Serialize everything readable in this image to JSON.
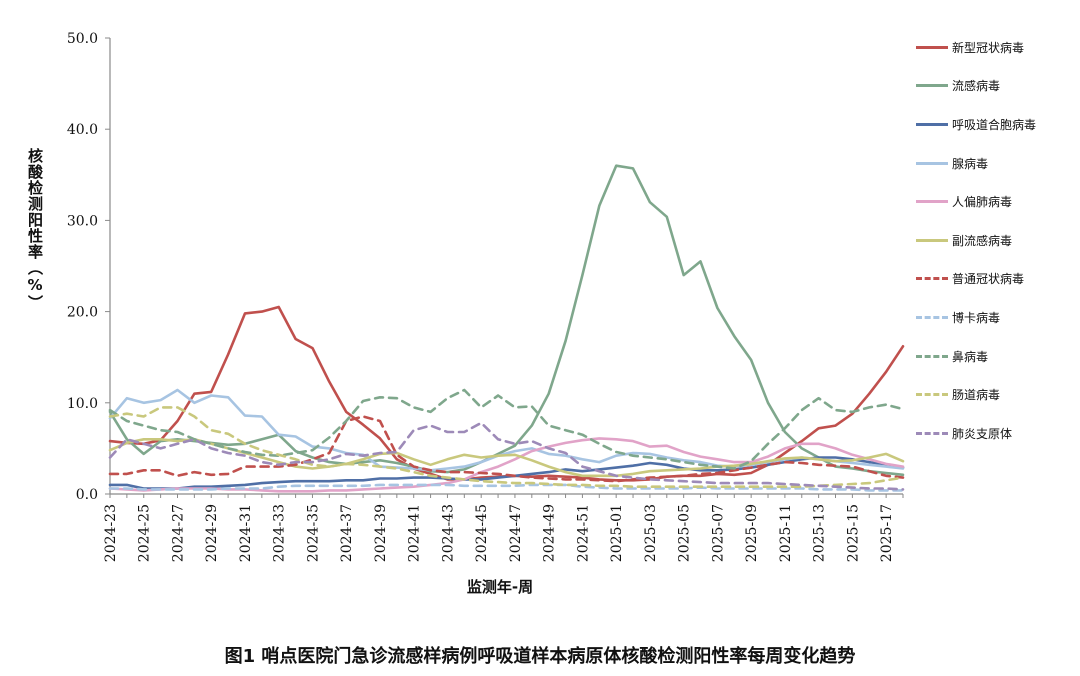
{
  "caption": "图1 哨点医院门急诊流感样病例呼吸道样本病原体核酸检测阳性率每周变化趋势",
  "chart_data": {
    "type": "line",
    "xlabel": "监测年-周",
    "ylabel": "核酸检测阳性率（%）",
    "ylim": [
      0,
      50
    ],
    "yticks": [
      "0.0",
      "10.0",
      "20.0",
      "30.0",
      "40.0",
      "50.0"
    ],
    "x": [
      "2024-23",
      "2024-24",
      "2024-25",
      "2024-26",
      "2024-27",
      "2024-28",
      "2024-29",
      "2024-30",
      "2024-31",
      "2024-32",
      "2024-33",
      "2024-34",
      "2024-35",
      "2024-36",
      "2024-37",
      "2024-38",
      "2024-39",
      "2024-40",
      "2024-41",
      "2024-42",
      "2024-43",
      "2024-44",
      "2024-45",
      "2024-46",
      "2024-47",
      "2024-48",
      "2024-49",
      "2024-50",
      "2024-51",
      "2024-52",
      "2025-01",
      "2025-02",
      "2025-03",
      "2025-04",
      "2025-05",
      "2025-06",
      "2025-07",
      "2025-08",
      "2025-09",
      "2025-10",
      "2025-11",
      "2025-12",
      "2025-13",
      "2025-14",
      "2025-15",
      "2025-16",
      "2025-17",
      "2025-18"
    ],
    "xtick_labels": [
      "2024-23",
      "2024-25",
      "2024-27",
      "2024-29",
      "2024-31",
      "2024-33",
      "2024-35",
      "2024-37",
      "2024-39",
      "2024-41",
      "2024-43",
      "2024-45",
      "2024-47",
      "2024-49",
      "2024-51",
      "2025-01",
      "2025-03",
      "2025-05",
      "2025-07",
      "2025-09",
      "2025-11",
      "2025-13",
      "2025-15",
      "2025-17"
    ],
    "grid": false,
    "legend_position": "right",
    "series": [
      {
        "name": "新型冠状病毒",
        "color": "#c0504d",
        "dash": false,
        "values": [
          5.8,
          5.6,
          5.5,
          5.9,
          8.0,
          11.0,
          11.2,
          15.3,
          19.8,
          20.0,
          20.5,
          17.0,
          16.0,
          12.3,
          9.0,
          7.6,
          6.1,
          3.8,
          2.8,
          2.2,
          1.6,
          1.6,
          1.8,
          1.9,
          2.0,
          1.9,
          2.0,
          1.9,
          1.8,
          1.6,
          1.5,
          1.5,
          1.6,
          1.9,
          2.0,
          2.0,
          2.2,
          2.1,
          2.3,
          3.2,
          4.5,
          5.8,
          7.2,
          7.5,
          8.8,
          11.0,
          13.4,
          16.2
        ]
      },
      {
        "name": "流感病毒",
        "color": "#7fa78c",
        "dash": false,
        "values": [
          9.0,
          6.0,
          4.4,
          5.8,
          6.0,
          5.8,
          5.6,
          5.4,
          5.5,
          6.0,
          6.5,
          4.7,
          4.0,
          3.5,
          3.3,
          3.5,
          3.7,
          3.4,
          3.0,
          2.5,
          2.4,
          2.7,
          3.5,
          4.4,
          5.3,
          7.5,
          11.0,
          16.8,
          24.0,
          31.6,
          36.0,
          35.7,
          32.0,
          30.4,
          24.0,
          25.5,
          20.4,
          17.3,
          14.7,
          10.0,
          6.8,
          5.0,
          4.0,
          3.0,
          2.8,
          2.5,
          2.3,
          2.1
        ]
      },
      {
        "name": "呼吸道合胞病毒",
        "color": "#4f6fa6",
        "dash": false,
        "values": [
          1.0,
          1.0,
          0.6,
          0.6,
          0.6,
          0.8,
          0.8,
          0.9,
          1.0,
          1.2,
          1.3,
          1.4,
          1.4,
          1.4,
          1.5,
          1.5,
          1.7,
          1.7,
          1.8,
          1.8,
          1.7,
          1.6,
          1.6,
          1.8,
          2.0,
          2.2,
          2.4,
          2.7,
          2.5,
          2.7,
          2.9,
          3.1,
          3.4,
          3.2,
          2.8,
          2.6,
          2.6,
          2.7,
          2.9,
          3.2,
          3.5,
          3.8,
          4.0,
          4.0,
          3.8,
          3.5,
          3.2,
          2.9
        ]
      },
      {
        "name": "腺病毒",
        "color": "#a7c4e2",
        "dash": false,
        "values": [
          8.3,
          10.5,
          10.0,
          10.3,
          11.4,
          10.0,
          10.8,
          10.6,
          8.6,
          8.5,
          6.5,
          6.3,
          5.2,
          5.0,
          4.5,
          4.3,
          3.0,
          2.9,
          2.8,
          2.6,
          2.8,
          3.0,
          3.5,
          4.2,
          4.7,
          5.0,
          4.4,
          4.2,
          3.8,
          3.5,
          4.2,
          4.5,
          4.4,
          4.0,
          3.7,
          3.5,
          3.1,
          3.0,
          3.2,
          3.5,
          3.8,
          4.0,
          3.8,
          3.6,
          3.4,
          3.2,
          3.0,
          2.8
        ]
      },
      {
        "name": "人偏肺病毒",
        "color": "#e1a3c8",
        "dash": false,
        "values": [
          0.6,
          0.5,
          0.4,
          0.5,
          0.6,
          0.6,
          0.6,
          0.5,
          0.5,
          0.4,
          0.3,
          0.3,
          0.3,
          0.4,
          0.4,
          0.5,
          0.6,
          0.7,
          0.8,
          1.0,
          1.2,
          1.6,
          2.4,
          3.0,
          3.8,
          4.7,
          5.2,
          5.6,
          5.9,
          6.1,
          6.0,
          5.8,
          5.2,
          5.3,
          4.6,
          4.1,
          3.8,
          3.5,
          3.5,
          4.1,
          5.0,
          5.5,
          5.5,
          5.0,
          4.3,
          3.8,
          3.3,
          3.0
        ]
      },
      {
        "name": "副流感病毒",
        "color": "#c9c87d",
        "dash": false,
        "values": [
          4.8,
          5.6,
          6.0,
          6.0,
          5.8,
          6.0,
          5.5,
          5.0,
          4.5,
          4.0,
          3.5,
          3.0,
          2.8,
          3.0,
          3.3,
          3.8,
          4.4,
          4.5,
          3.8,
          3.2,
          3.8,
          4.3,
          4.0,
          4.2,
          4.3,
          3.7,
          3.0,
          2.4,
          2.0,
          2.0,
          2.0,
          2.2,
          2.5,
          2.6,
          2.7,
          2.8,
          3.0,
          3.1,
          3.3,
          3.6,
          3.9,
          4.0,
          3.8,
          3.6,
          3.7,
          4.0,
          4.4,
          3.6
        ]
      },
      {
        "name": "普通冠状病毒",
        "color": "#c0504d",
        "dash": true,
        "values": [
          2.2,
          2.2,
          2.6,
          2.6,
          2.0,
          2.4,
          2.1,
          2.2,
          3.0,
          3.0,
          3.0,
          3.2,
          3.8,
          4.5,
          8.0,
          8.5,
          8.0,
          4.3,
          3.0,
          2.6,
          2.4,
          2.4,
          2.3,
          2.2,
          2.0,
          1.8,
          1.7,
          1.6,
          1.6,
          1.5,
          1.4,
          1.6,
          1.8,
          1.9,
          2.0,
          2.2,
          2.3,
          2.6,
          2.9,
          3.2,
          3.5,
          3.4,
          3.2,
          3.1,
          3.0,
          2.5,
          2.0,
          1.8
        ]
      },
      {
        "name": "博卡病毒",
        "color": "#a7c4e2",
        "dash": true,
        "values": [
          0.6,
          0.6,
          0.5,
          0.5,
          0.5,
          0.5,
          0.5,
          0.6,
          0.6,
          0.6,
          0.8,
          0.9,
          0.9,
          0.9,
          0.9,
          0.9,
          1.0,
          1.0,
          1.0,
          1.0,
          1.0,
          0.9,
          0.9,
          0.9,
          0.9,
          1.0,
          1.0,
          1.0,
          0.8,
          0.7,
          0.6,
          0.6,
          0.6,
          0.6,
          0.6,
          0.7,
          0.6,
          0.6,
          0.6,
          0.6,
          0.6,
          0.6,
          0.5,
          0.5,
          0.5,
          0.4,
          0.4,
          0.4
        ]
      },
      {
        "name": "鼻病毒",
        "color": "#7fa78c",
        "dash": true,
        "values": [
          9.2,
          8.0,
          7.5,
          7.0,
          6.8,
          6.0,
          5.5,
          5.0,
          4.6,
          4.3,
          4.2,
          4.5,
          4.8,
          6.2,
          8.0,
          10.2,
          10.6,
          10.5,
          9.5,
          9.0,
          10.5,
          11.4,
          9.5,
          10.8,
          9.5,
          9.6,
          7.5,
          7.0,
          6.5,
          5.5,
          4.6,
          4.2,
          4.0,
          3.8,
          3.5,
          3.2,
          3.0,
          2.8,
          3.6,
          5.5,
          7.2,
          9.2,
          10.5,
          9.2,
          9.0,
          9.5,
          9.8,
          9.3
        ]
      },
      {
        "name": "肠道病毒",
        "color": "#c9c87d",
        "dash": true,
        "values": [
          8.5,
          8.8,
          8.5,
          9.5,
          9.5,
          8.5,
          7.0,
          6.6,
          5.5,
          4.8,
          4.3,
          3.8,
          3.2,
          3.0,
          3.3,
          3.2,
          3.0,
          2.8,
          2.4,
          2.0,
          1.8,
          1.6,
          1.4,
          1.3,
          1.2,
          1.2,
          1.1,
          1.0,
          1.0,
          0.9,
          0.9,
          0.8,
          0.8,
          0.8,
          0.8,
          0.8,
          0.8,
          0.8,
          0.8,
          0.8,
          0.8,
          0.8,
          0.9,
          1.0,
          1.1,
          1.2,
          1.5,
          1.8
        ]
      },
      {
        "name": "肺炎支原体",
        "color": "#9d8ab8",
        "dash": true,
        "values": [
          4.0,
          6.0,
          5.5,
          5.0,
          5.5,
          6.0,
          5.0,
          4.5,
          4.2,
          3.5,
          3.2,
          3.5,
          3.5,
          3.8,
          4.4,
          4.2,
          4.5,
          4.6,
          7.0,
          7.5,
          6.8,
          6.8,
          7.8,
          6.0,
          5.5,
          5.8,
          5.0,
          4.5,
          3.0,
          2.5,
          2.0,
          1.8,
          1.6,
          1.5,
          1.4,
          1.3,
          1.2,
          1.2,
          1.2,
          1.2,
          1.1,
          1.0,
          0.9,
          0.8,
          0.7,
          0.6,
          0.6,
          0.5
        ]
      }
    ]
  }
}
